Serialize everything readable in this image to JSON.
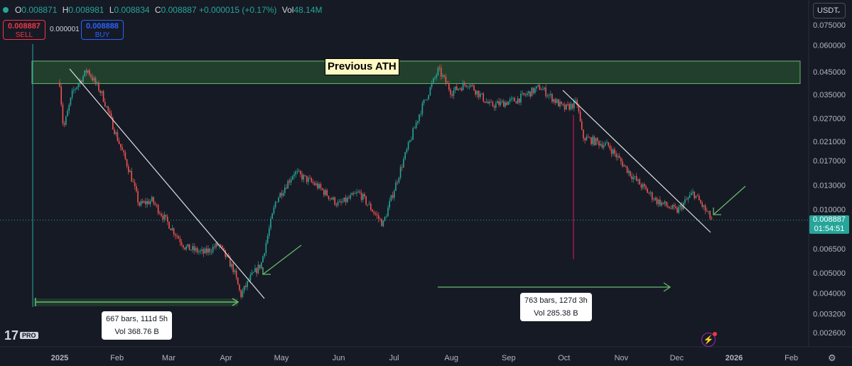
{
  "header": {
    "open_label": "O",
    "open": "0.008871",
    "high_label": "H",
    "high": "0.008981",
    "low_label": "L",
    "low": "0.008834",
    "close_label": "C",
    "close": "0.008887",
    "change": "+0.000015 (+0.17%)",
    "vol_label": "Vol",
    "vol": "48.14M"
  },
  "trade": {
    "sell_price": "0.008887",
    "sell_label": "SELL",
    "spread": "0.000001",
    "buy_price": "0.008888",
    "buy_label": "BUY"
  },
  "currency_selector": {
    "value": "USDT"
  },
  "current_price": {
    "price": "0.008887",
    "countdown": "01:54:51"
  },
  "annotations": {
    "ath_label": "Previous ATH",
    "range1": {
      "bars": "667 bars, 111d 5h",
      "vol": "Vol 368.76 B"
    },
    "range2": {
      "bars": "763 bars, 127d 3h",
      "vol": "Vol 285.38 B"
    }
  },
  "branding": {
    "logo": "17",
    "pro_badge": "PRO"
  },
  "icons": {
    "settings": "gear-icon",
    "alerts": "lightning-icon",
    "chevron": "chevron-down-icon"
  },
  "colors": {
    "up": "#26a69a",
    "down": "#ef5350",
    "background": "#161a25",
    "zone": "#43a047",
    "arrow": "#4caf50"
  },
  "chart_data": {
    "type": "candlestick",
    "scale": "log",
    "y_ticks": [
      "0.075000",
      "0.060000",
      "0.045000",
      "0.035000",
      "0.027000",
      "0.021000",
      "0.017000",
      "0.013000",
      "0.010000",
      "0.006500",
      "0.005000",
      "0.004000",
      "0.003200",
      "0.002600"
    ],
    "x_ticks": [
      "2025",
      "Feb",
      "Mar",
      "Apr",
      "May",
      "Jun",
      "Jul",
      "Aug",
      "Sep",
      "Oct",
      "Nov",
      "Dec",
      "2026",
      "Feb"
    ],
    "x_ticks_bold": [
      "2025",
      "2026"
    ],
    "price_path": [
      [
        "2025-01-01",
        0.04
      ],
      [
        "2025-01-03",
        0.024
      ],
      [
        "2025-01-08",
        0.036
      ],
      [
        "2025-01-16",
        0.046
      ],
      [
        "2025-01-24",
        0.035
      ],
      [
        "2025-02-01",
        0.022
      ],
      [
        "2025-02-08",
        0.015
      ],
      [
        "2025-02-13",
        0.0105
      ],
      [
        "2025-02-20",
        0.011
      ],
      [
        "2025-03-01",
        0.0085
      ],
      [
        "2025-03-10",
        0.0066
      ],
      [
        "2025-03-20",
        0.0062
      ],
      [
        "2025-03-28",
        0.0068
      ],
      [
        "2025-04-05",
        0.0052
      ],
      [
        "2025-04-09",
        0.0039
      ],
      [
        "2025-04-14",
        0.0047
      ],
      [
        "2025-04-20",
        0.0055
      ],
      [
        "2025-04-28",
        0.011
      ],
      [
        "2025-05-08",
        0.015
      ],
      [
        "2025-05-20",
        0.013
      ],
      [
        "2025-06-01",
        0.0105
      ],
      [
        "2025-06-12",
        0.012
      ],
      [
        "2025-06-25",
        0.0085
      ],
      [
        "2025-07-05",
        0.016
      ],
      [
        "2025-07-15",
        0.029
      ],
      [
        "2025-07-25",
        0.046
      ],
      [
        "2025-08-01",
        0.036
      ],
      [
        "2025-08-10",
        0.04
      ],
      [
        "2025-08-22",
        0.031
      ],
      [
        "2025-09-05",
        0.033
      ],
      [
        "2025-09-18",
        0.038
      ],
      [
        "2025-10-01",
        0.03
      ],
      [
        "2025-10-08",
        0.032
      ],
      [
        "2025-10-11",
        0.022
      ],
      [
        "2025-10-25",
        0.02
      ],
      [
        "2025-11-08",
        0.014
      ],
      [
        "2025-11-20",
        0.011
      ],
      [
        "2025-12-01",
        0.0098
      ],
      [
        "2025-12-10",
        0.012
      ],
      [
        "2025-12-20",
        0.0089
      ]
    ]
  }
}
